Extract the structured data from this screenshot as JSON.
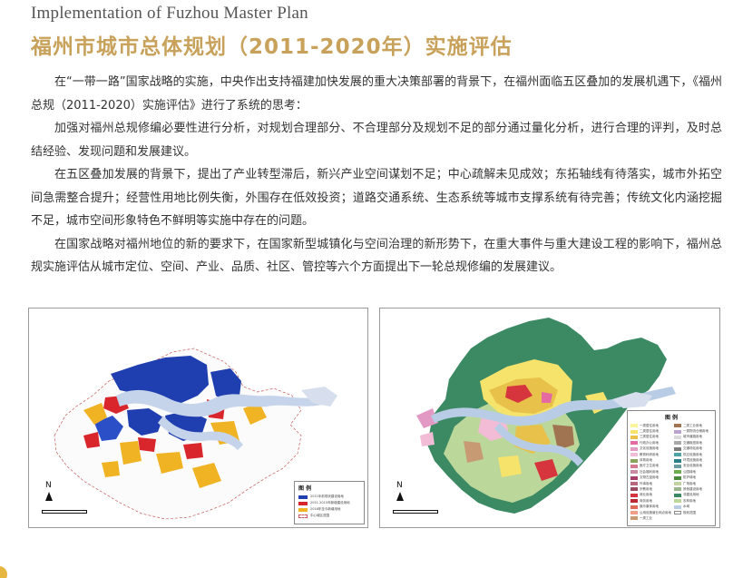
{
  "header": {
    "title_en": "Implementation of Fuzhou Master Plan",
    "title_cn": "福州市城市总体规划（2011-2020年）实施评估"
  },
  "paragraphs": [
    "在“一带一路”国家战略的实施，中央作出支持福建加快发展的重大决策部署的背景下，在福州面临五区叠加的发展机遇下，《福州总规（2011-2020）实施评估》进行了系统的思考：",
    "加强对福州总规修编必要性进行分析，对规划合理部分、不合理部分及规划不足的部分通过量化分析，进行合理的评判，及时总结经验、发现问题和发展建议。",
    "在五区叠加发展的背景下，提出了产业转型滞后，新兴产业空间谋划不足；中心疏解未见成效；东拓轴线有待落实，城市外拓空间急需整合提升；经营性用地比例失衡，外围存在低效投资；道路交通系统、生态系统等城市支撑系统有待完善；传统文化内涵挖掘不足，城市空间形象特色不鲜明等实施中存在的问题。",
    "在国家战略对福州地位的新的要求下，在国家新型城镇化与空间治理的新形势下，在重大事件与重大建设工程的影响下，福州总规实施评估从城市定位、空间、产业、品质、社区、管控等六个方面提出下一轮总规修编的发展建议。"
  ],
  "maps": {
    "left": {
      "legend_title": "图 例",
      "north": "N",
      "legend_items": [
        {
          "label": "2011年前现状建设用地",
          "color": "#1f3fb0"
        },
        {
          "label": "2011-2015年新增建设用地",
          "color": "#d9262c"
        },
        {
          "label": "2016年至今新增用地",
          "color": "#f0b323"
        },
        {
          "label": "中心城区范围",
          "color": "#ffffff"
        }
      ]
    },
    "right": {
      "legend_title": "图 例",
      "north": "N",
      "legend_left": [
        {
          "label": "一类居住用地",
          "color": "#fbf39a"
        },
        {
          "label": "二类居住用地",
          "color": "#f6e36b"
        },
        {
          "label": "三类居住用地",
          "color": "#e8c14a"
        },
        {
          "label": "行政办公用地",
          "color": "#e56aa2"
        },
        {
          "label": "文化设施用地",
          "color": "#e29ac4"
        },
        {
          "label": "教育科研用地",
          "color": "#f2bcd6"
        },
        {
          "label": "体育用地",
          "color": "#8aa55a"
        },
        {
          "label": "医疗卫生用地",
          "color": "#d57a8e"
        },
        {
          "label": "社会福利用地",
          "color": "#c989a3"
        },
        {
          "label": "文物古迹用地",
          "color": "#a83c6a"
        },
        {
          "label": "外事用地",
          "color": "#b8687d"
        },
        {
          "label": "宗教用地",
          "color": "#9e4a63"
        },
        {
          "label": "商业用地",
          "color": "#d6353d"
        },
        {
          "label": "商务用地",
          "color": "#b92a33"
        },
        {
          "label": "娱乐康体用地",
          "color": "#e16a56"
        },
        {
          "label": "公用设施营业网点用地",
          "color": "#f29f86"
        },
        {
          "label": "一类工业",
          "color": "#c79a73"
        }
      ],
      "legend_right": [
        {
          "label": "二类工业用地",
          "color": "#a07451"
        },
        {
          "label": "一类物流仓储用地",
          "color": "#b9a2cc"
        },
        {
          "label": "城市道路用地",
          "color": "#dadada"
        },
        {
          "label": "交通枢纽用地",
          "color": "#a9a9a9"
        },
        {
          "label": "交通场站用地",
          "color": "#7d7d7d"
        },
        {
          "label": "供应设施用地",
          "color": "#4fa3a6"
        },
        {
          "label": "环境设施用地",
          "color": "#2c7f86"
        },
        {
          "label": "安全设施用地",
          "color": "#6a9e9e"
        },
        {
          "label": "公园绿地",
          "color": "#6cae4e"
        },
        {
          "label": "防护绿地",
          "color": "#4a8a3c"
        },
        {
          "label": "广场用地",
          "color": "#c4d3a2"
        },
        {
          "label": "其他建设用地",
          "color": "#9ab58a"
        },
        {
          "label": "非建设用地",
          "color": "#3c8a64"
        },
        {
          "label": "农林用地",
          "color": "#bcd79a"
        },
        {
          "label": "水域",
          "color": "#b9cce6"
        },
        {
          "label": "规划范围",
          "color": "#ffffff"
        }
      ]
    }
  }
}
